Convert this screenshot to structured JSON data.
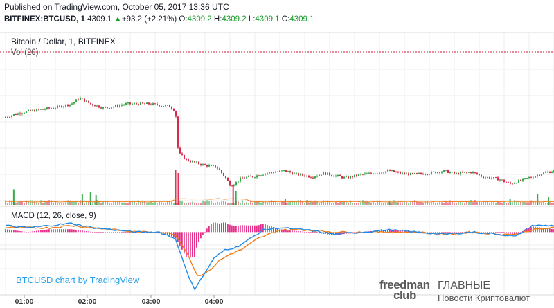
{
  "header": {
    "published": "Published on TradingView.com, October 05, 2017 13:36 UTC"
  },
  "quote": {
    "symbol": "BITFINEX:BTCUSD, 1",
    "last": "4309.1",
    "change_arrow": "▲",
    "change": "+93.2 (+2.21%)",
    "o_label": "O:",
    "o": "4309.2",
    "h_label": "H:",
    "h": "4309.2",
    "l_label": "L:",
    "l": "4309.1",
    "c_label": "C:",
    "c": "4309.1"
  },
  "main_panel": {
    "title": "Bitcoin / Dollar, 1, BITFINEX",
    "volume_label": "Vol (20)"
  },
  "macd_panel": {
    "label": "MACD (12, 26, close, 9)"
  },
  "credit": "BTCUSD chart by TradingView",
  "logo": {
    "brand_line1": "freedman",
    "brand_line2": "club",
    "main": "ГЛАВНЫЕ",
    "sub": "Новости Криптовалют"
  },
  "colors": {
    "up": "#1b9c2d",
    "down": "#d2143a",
    "macd_line": "#1e88e5",
    "signal_line": "#ef7d1a",
    "histogram": "#e0197d",
    "volume_ma": "#ef7d1a",
    "grid": "#ececec"
  },
  "chart_data": {
    "type": "candlestick",
    "x_tick_labels": [
      "01:00",
      "02:00",
      "03:00",
      "04:00"
    ],
    "price_path": [
      [
        0,
        4240
      ],
      [
        0.03,
        4248
      ],
      [
        0.06,
        4252
      ],
      [
        0.09,
        4256
      ],
      [
        0.12,
        4262
      ],
      [
        0.135,
        4272
      ],
      [
        0.155,
        4262
      ],
      [
        0.18,
        4255
      ],
      [
        0.2,
        4258
      ],
      [
        0.22,
        4262
      ],
      [
        0.26,
        4262
      ],
      [
        0.28,
        4260
      ],
      [
        0.3,
        4258
      ],
      [
        0.31,
        4250
      ],
      [
        0.315,
        4180
      ],
      [
        0.33,
        4168
      ],
      [
        0.36,
        4160
      ],
      [
        0.385,
        4156
      ],
      [
        0.4,
        4140
      ],
      [
        0.41,
        4126
      ],
      [
        0.42,
        4130
      ],
      [
        0.43,
        4138
      ],
      [
        0.45,
        4140
      ],
      [
        0.47,
        4145
      ],
      [
        0.49,
        4148
      ],
      [
        0.51,
        4150
      ],
      [
        0.53,
        4144
      ],
      [
        0.56,
        4140
      ],
      [
        0.58,
        4146
      ],
      [
        0.6,
        4142
      ],
      [
        0.62,
        4138
      ],
      [
        0.65,
        4144
      ],
      [
        0.67,
        4146
      ],
      [
        0.7,
        4150
      ],
      [
        0.72,
        4146
      ],
      [
        0.74,
        4144
      ],
      [
        0.77,
        4146
      ],
      [
        0.8,
        4150
      ],
      [
        0.82,
        4145
      ],
      [
        0.85,
        4148
      ],
      [
        0.87,
        4140
      ],
      [
        0.9,
        4136
      ],
      [
        0.92,
        4128
      ],
      [
        0.94,
        4134
      ],
      [
        0.96,
        4140
      ],
      [
        0.98,
        4146
      ],
      [
        1.0,
        4150
      ]
    ],
    "price_range": [
      4100,
      4320
    ],
    "macd_path": [
      [
        0,
        3
      ],
      [
        0.04,
        2
      ],
      [
        0.08,
        3
      ],
      [
        0.12,
        4
      ],
      [
        0.16,
        2
      ],
      [
        0.2,
        1
      ],
      [
        0.24,
        0
      ],
      [
        0.28,
        0
      ],
      [
        0.31,
        -3
      ],
      [
        0.33,
        -18
      ],
      [
        0.345,
        -26
      ],
      [
        0.36,
        -20
      ],
      [
        0.38,
        -12
      ],
      [
        0.4,
        -8
      ],
      [
        0.42,
        -7
      ],
      [
        0.44,
        -4
      ],
      [
        0.47,
        1
      ],
      [
        0.5,
        2
      ],
      [
        0.55,
        1
      ],
      [
        0.6,
        -1
      ],
      [
        0.65,
        0
      ],
      [
        0.7,
        1
      ],
      [
        0.75,
        0
      ],
      [
        0.8,
        -1
      ],
      [
        0.85,
        0
      ],
      [
        0.9,
        -1
      ],
      [
        0.93,
        -2
      ],
      [
        0.96,
        3
      ],
      [
        1.0,
        3
      ]
    ],
    "signal_path": [
      [
        0,
        2
      ],
      [
        0.04,
        2
      ],
      [
        0.08,
        2
      ],
      [
        0.12,
        3
      ],
      [
        0.16,
        2
      ],
      [
        0.2,
        1
      ],
      [
        0.24,
        0
      ],
      [
        0.28,
        0
      ],
      [
        0.31,
        -1
      ],
      [
        0.33,
        -9
      ],
      [
        0.35,
        -20
      ],
      [
        0.37,
        -18
      ],
      [
        0.39,
        -13
      ],
      [
        0.41,
        -10
      ],
      [
        0.43,
        -8
      ],
      [
        0.46,
        -3
      ],
      [
        0.5,
        1
      ],
      [
        0.55,
        1
      ],
      [
        0.6,
        0
      ],
      [
        0.65,
        0
      ],
      [
        0.7,
        0
      ],
      [
        0.75,
        0
      ],
      [
        0.8,
        -1
      ],
      [
        0.85,
        0
      ],
      [
        0.9,
        -1
      ],
      [
        0.93,
        -1
      ],
      [
        0.96,
        1
      ],
      [
        1.0,
        2
      ]
    ],
    "macd_range": [
      -28,
      8
    ],
    "volume_spikes": [
      [
        0.015,
        45
      ],
      [
        0.14,
        32
      ],
      [
        0.155,
        38
      ],
      [
        0.165,
        28
      ],
      [
        0.31,
        100
      ],
      [
        0.315,
        92
      ],
      [
        0.415,
        58
      ],
      [
        0.42,
        40
      ],
      [
        0.51,
        18
      ],
      [
        0.55,
        14
      ],
      [
        0.7,
        10
      ],
      [
        0.92,
        18
      ],
      [
        0.97,
        30
      ],
      [
        0.99,
        24
      ]
    ]
  }
}
